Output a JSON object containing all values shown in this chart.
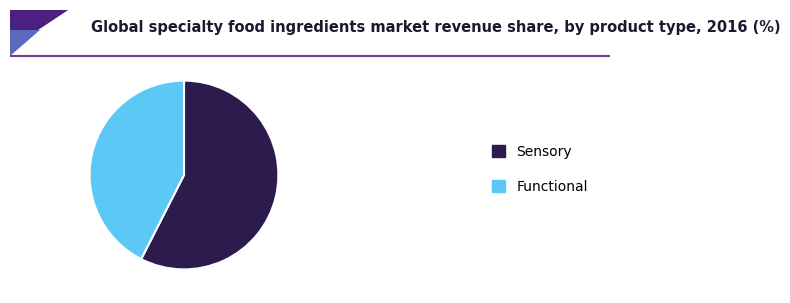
{
  "title": "Global specialty food ingredients market revenue share, by product type, 2016 (%)",
  "slices": [
    {
      "label": "Sensory",
      "value": 57.5,
      "color": "#2d1b4e"
    },
    {
      "label": "Functional",
      "value": 42.5,
      "color": "#5bc8f5"
    }
  ],
  "legend_labels": [
    "Sensory",
    "Functional"
  ],
  "legend_colors": [
    "#2d1b4e",
    "#5bc8f5"
  ],
  "background_color": "#ffffff",
  "title_fontsize": 10.5,
  "start_angle": 90,
  "line_color": "#6a3d9a",
  "accent_purple": "#4a2080",
  "accent_blue": "#5b8fcc",
  "title_color": "#1a1a2e"
}
